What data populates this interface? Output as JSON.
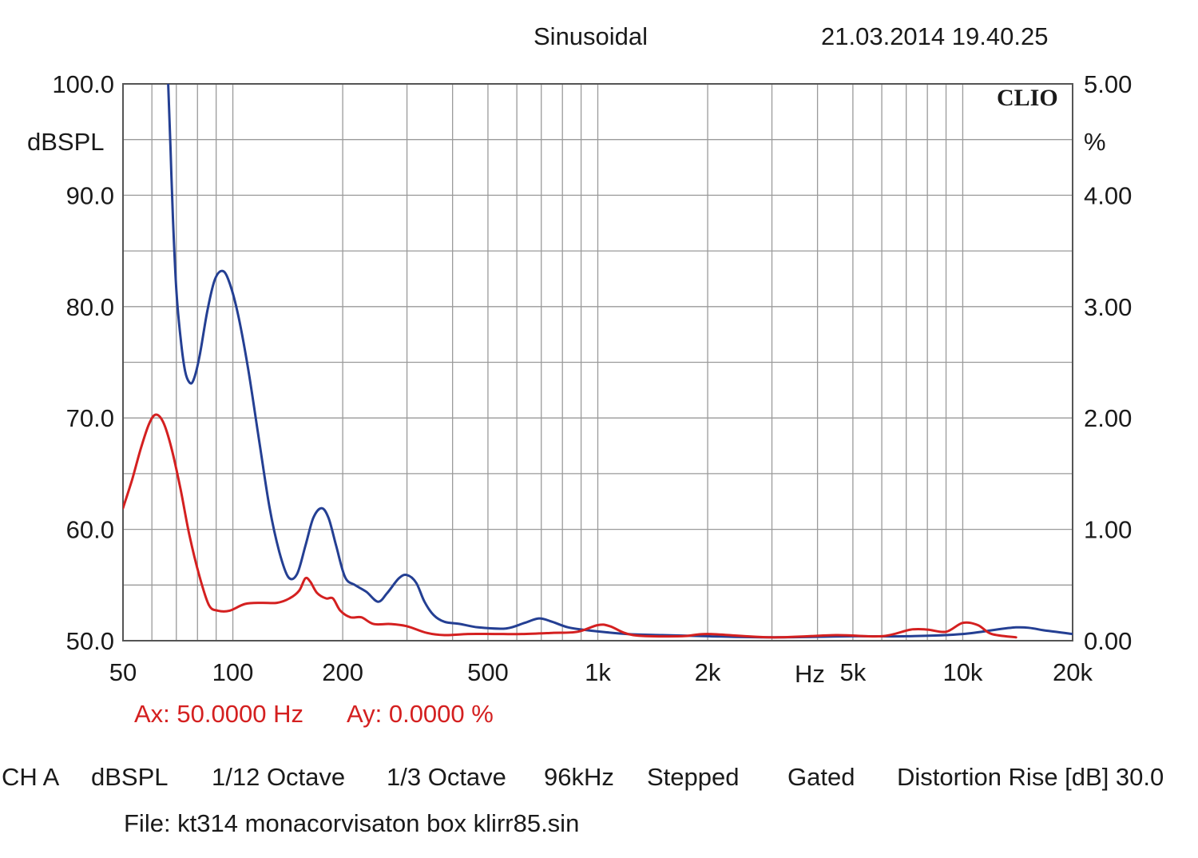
{
  "header": {
    "mode": "Sinusoidal",
    "timestamp": "21.03.2014 19.40.25"
  },
  "cursor": {
    "ax": "Ax: 50.0000 Hz",
    "ay": "Ay: 0.0000 %"
  },
  "footer": {
    "channel": "CH A",
    "unit": "dBSPL",
    "smoothing": "1/12 Octave",
    "resolution": "1/3 Octave",
    "sample_rate": "96kHz",
    "sweep": "Stepped",
    "gating": "Gated",
    "distortion_rise": "Distortion Rise [dB] 30.0",
    "file": "File: kt314 monacorvisaton box klirr85.sin"
  },
  "colors": {
    "blue_series": "#243f93",
    "red_series": "#d42020",
    "grid": "#9a9a9a",
    "frame": "#555555"
  },
  "chart_data": {
    "type": "line",
    "watermark": "CLIO",
    "xscale": "log",
    "xlim": [
      50,
      20000
    ],
    "x_ticks": [
      {
        "value": 50,
        "label": "50"
      },
      {
        "value": 100,
        "label": "100"
      },
      {
        "value": 200,
        "label": "200"
      },
      {
        "value": 500,
        "label": "500"
      },
      {
        "value": 1000,
        "label": "1k"
      },
      {
        "value": 2000,
        "label": "2k"
      },
      {
        "value": 5000,
        "label": "5k"
      },
      {
        "value": 10000,
        "label": "10k"
      },
      {
        "value": 20000,
        "label": "20k"
      }
    ],
    "x_unit_label": "Hz",
    "ylim_left": [
      50,
      100
    ],
    "y_ticks_left": [
      "100.0",
      "90.0",
      "80.0",
      "70.0",
      "60.0",
      "50.0"
    ],
    "ylabel_left": "dBSPL",
    "ylim_right": [
      0,
      5
    ],
    "y_ticks_right": [
      "5.00",
      "4.00",
      "3.00",
      "2.00",
      "1.00",
      "0.00"
    ],
    "ylabel_right": "%",
    "grid": true,
    "series": [
      {
        "color": "#243f93",
        "axis": "right",
        "points": [
          [
            66.5,
            5.0
          ],
          [
            67.5,
            4.4
          ],
          [
            68.5,
            3.8
          ],
          [
            70,
            3.15
          ],
          [
            72,
            2.7
          ],
          [
            74,
            2.42
          ],
          [
            76,
            2.32
          ],
          [
            78,
            2.34
          ],
          [
            81,
            2.55
          ],
          [
            85,
            2.95
          ],
          [
            89,
            3.23
          ],
          [
            93,
            3.32
          ],
          [
            97,
            3.25
          ],
          [
            103,
            2.95
          ],
          [
            110,
            2.45
          ],
          [
            118,
            1.8
          ],
          [
            126,
            1.2
          ],
          [
            134,
            0.8
          ],
          [
            142,
            0.57
          ],
          [
            150,
            0.6
          ],
          [
            158,
            0.85
          ],
          [
            166,
            1.1
          ],
          [
            175,
            1.19
          ],
          [
            183,
            1.1
          ],
          [
            192,
            0.85
          ],
          [
            203,
            0.57
          ],
          [
            216,
            0.5
          ],
          [
            232,
            0.44
          ],
          [
            250,
            0.35
          ],
          [
            265,
            0.43
          ],
          [
            285,
            0.56
          ],
          [
            300,
            0.59
          ],
          [
            318,
            0.52
          ],
          [
            335,
            0.35
          ],
          [
            355,
            0.23
          ],
          [
            380,
            0.17
          ],
          [
            420,
            0.15
          ],
          [
            470,
            0.12
          ],
          [
            560,
            0.11
          ],
          [
            630,
            0.16
          ],
          [
            690,
            0.2
          ],
          [
            750,
            0.17
          ],
          [
            830,
            0.12
          ],
          [
            960,
            0.09
          ],
          [
            1200,
            0.06
          ],
          [
            1500,
            0.05
          ],
          [
            2000,
            0.04
          ],
          [
            3000,
            0.03
          ],
          [
            5000,
            0.04
          ],
          [
            7000,
            0.04
          ],
          [
            10000,
            0.06
          ],
          [
            14000,
            0.12
          ],
          [
            17000,
            0.09
          ],
          [
            20000,
            0.06
          ]
        ]
      },
      {
        "color": "#d42020",
        "axis": "right",
        "points": [
          [
            50,
            1.19
          ],
          [
            53,
            1.45
          ],
          [
            56,
            1.73
          ],
          [
            59,
            1.95
          ],
          [
            61.5,
            2.03
          ],
          [
            64.5,
            1.96
          ],
          [
            68,
            1.72
          ],
          [
            72,
            1.35
          ],
          [
            76,
            0.95
          ],
          [
            81,
            0.58
          ],
          [
            86,
            0.32
          ],
          [
            91,
            0.27
          ],
          [
            98,
            0.27
          ],
          [
            108,
            0.33
          ],
          [
            120,
            0.34
          ],
          [
            132,
            0.34
          ],
          [
            143,
            0.38
          ],
          [
            152,
            0.45
          ],
          [
            158,
            0.56
          ],
          [
            163,
            0.53
          ],
          [
            170,
            0.43
          ],
          [
            180,
            0.38
          ],
          [
            188,
            0.38
          ],
          [
            197,
            0.27
          ],
          [
            210,
            0.21
          ],
          [
            225,
            0.21
          ],
          [
            243,
            0.15
          ],
          [
            270,
            0.15
          ],
          [
            300,
            0.13
          ],
          [
            340,
            0.07
          ],
          [
            380,
            0.05
          ],
          [
            440,
            0.06
          ],
          [
            520,
            0.06
          ],
          [
            620,
            0.06
          ],
          [
            750,
            0.07
          ],
          [
            880,
            0.08
          ],
          [
            1000,
            0.14
          ],
          [
            1080,
            0.13
          ],
          [
            1250,
            0.05
          ],
          [
            1700,
            0.04
          ],
          [
            2000,
            0.06
          ],
          [
            3000,
            0.03
          ],
          [
            4500,
            0.05
          ],
          [
            6000,
            0.04
          ],
          [
            7200,
            0.1
          ],
          [
            8000,
            0.1
          ],
          [
            9000,
            0.08
          ],
          [
            10000,
            0.16
          ],
          [
            11000,
            0.14
          ],
          [
            12000,
            0.06
          ],
          [
            14000,
            0.03
          ]
        ]
      }
    ]
  }
}
